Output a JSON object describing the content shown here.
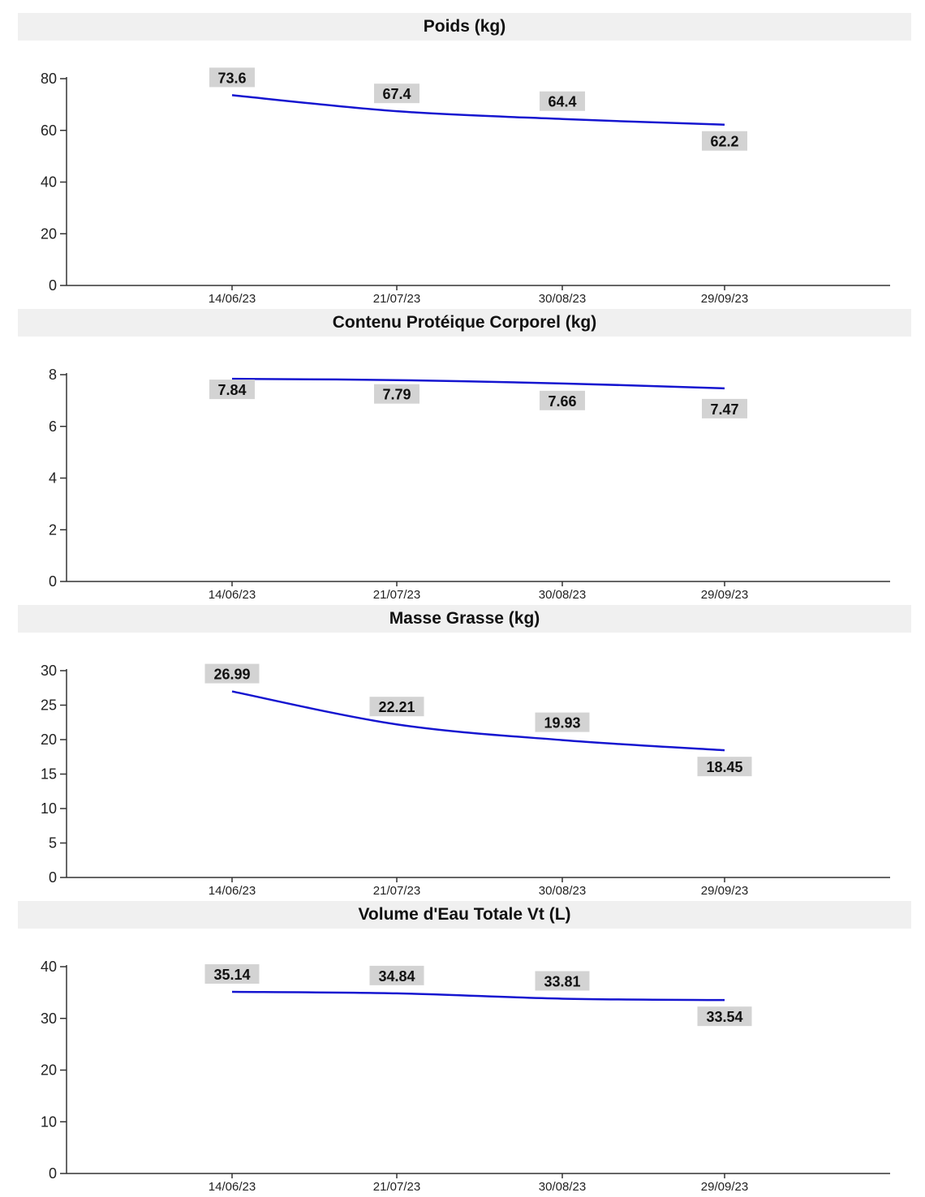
{
  "chart_data": [
    {
      "type": "line",
      "title": "Poids (kg)",
      "categories": [
        "14/06/23",
        "21/07/23",
        "30/08/23",
        "29/09/23"
      ],
      "values": [
        73.6,
        67.4,
        64.4,
        62.2
      ],
      "data_labels": [
        "73.6",
        "67.4",
        "64.4",
        "62.2"
      ],
      "yticks": [
        "0",
        "20",
        "40",
        "60",
        "80"
      ],
      "ylim": [
        0,
        80
      ],
      "grid": false,
      "line_color": "#1515d0"
    },
    {
      "type": "line",
      "title": "Contenu Protéique Corporel (kg)",
      "categories": [
        "14/06/23",
        "21/07/23",
        "30/08/23",
        "29/09/23"
      ],
      "values": [
        7.84,
        7.79,
        7.66,
        7.47
      ],
      "data_labels": [
        "7.84",
        "7.79",
        "7.66",
        "7.47"
      ],
      "yticks": [
        "0",
        "2",
        "4",
        "6",
        "8"
      ],
      "ylim": [
        0,
        8
      ],
      "grid": false,
      "line_color": "#1515d0"
    },
    {
      "type": "line",
      "title": "Masse Grasse (kg)",
      "categories": [
        "14/06/23",
        "21/07/23",
        "30/08/23",
        "29/09/23"
      ],
      "values": [
        26.99,
        22.21,
        19.93,
        18.45
      ],
      "data_labels": [
        "26.99",
        "22.21",
        "19.93",
        "18.45"
      ],
      "yticks": [
        "0",
        "5",
        "10",
        "15",
        "20",
        "25",
        "30"
      ],
      "ylim": [
        0,
        30
      ],
      "grid": false,
      "line_color": "#1515d0"
    },
    {
      "type": "line",
      "title": "Volume d'Eau Totale Vt (L)",
      "categories": [
        "14/06/23",
        "21/07/23",
        "30/08/23",
        "29/09/23"
      ],
      "values": [
        35.14,
        34.84,
        33.81,
        33.54
      ],
      "data_labels": [
        "35.14",
        "34.84",
        "33.81",
        "33.54"
      ],
      "yticks": [
        "0",
        "10",
        "20",
        "30",
        "40"
      ],
      "ylim": [
        0,
        40
      ],
      "grid": false,
      "line_color": "#1515d0"
    }
  ]
}
